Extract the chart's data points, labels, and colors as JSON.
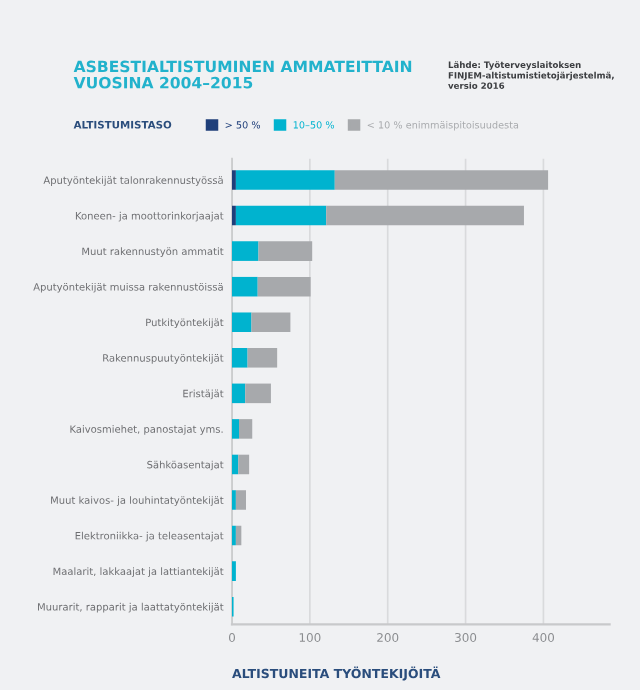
{
  "chart_data": {
    "type": "bar",
    "orientation": "horizontal",
    "stacked": true,
    "title": "ASBESTIALTISTUMINEN AMMATEITTAIN\nVUOSINA 2004–2015",
    "annotations": [
      "Lähde: Työterveyslaitoksen\nFINJEM-altistumistietojärjestelmä,\nversio 2016"
    ],
    "legend_title": "ALTISTUMISTASO",
    "xlabel": "ALTISTUNEITA TYÖNTEKIJÖITÄ",
    "categories": [
      "Aputyöntekijät talonrakennustyössä",
      "Koneen- ja moottorinkorjaajat",
      "Muut rakennustyön ammatit",
      "Aputyöntekijät muissa rakennustöissä",
      "Putkityöntekijät",
      "Rakennuspuutyöntekijät",
      "Eristäjät",
      "Kaivosmiehet, panostajat yms.",
      "Sähköasentajat",
      "Muut kaivos- ja louhintatyöntekijät",
      "Elektroniikka- ja teleasentajat",
      "Maalarit, lakkaajat ja lattiantekijät",
      "Muurarit, rapparit ja laattatyöntekijät"
    ],
    "series": [
      {
        "name": "> 50 %",
        "color": "#1f3f7a",
        "values": [
          5,
          5,
          0,
          0,
          0,
          0,
          0,
          0,
          0,
          0,
          0,
          0,
          0
        ]
      },
      {
        "name": "10–50 %",
        "color": "#00b3cf",
        "values": [
          127,
          116,
          34,
          33,
          25,
          20,
          17,
          9,
          8,
          5,
          5,
          5,
          2
        ]
      },
      {
        "name": "< 10 % enimmäispitoisuudesta",
        "color": "#a7a9ac",
        "values": [
          274,
          254,
          69,
          68,
          50,
          38,
          33,
          17,
          14,
          13,
          7,
          0,
          0
        ]
      }
    ],
    "xlim": [
      0,
      485
    ],
    "xticks": [
      0,
      100,
      200,
      300,
      400
    ],
    "grid": "x",
    "legend": "top"
  }
}
